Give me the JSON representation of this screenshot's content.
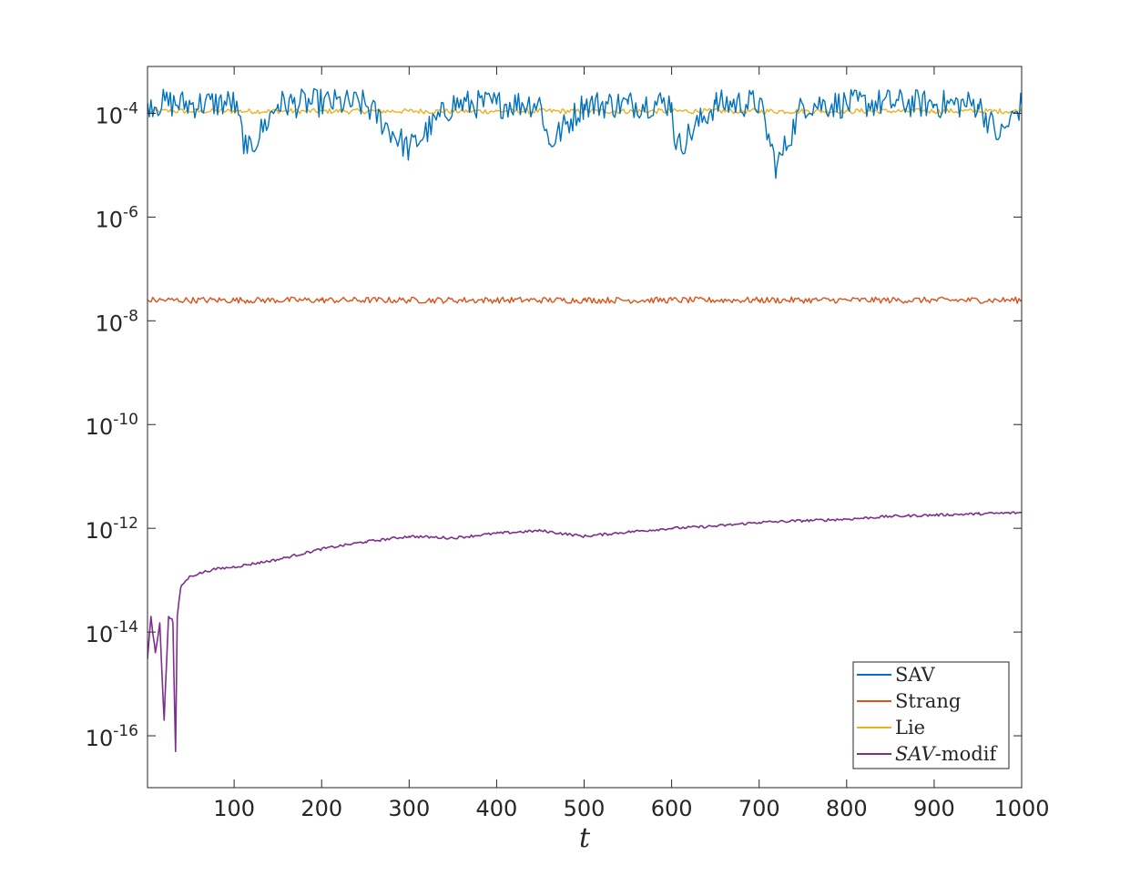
{
  "chart_data": {
    "type": "line",
    "xlabel": "t",
    "ylabel": "",
    "title": "",
    "xlim": [
      1,
      1000
    ],
    "ylim": [
      1e-17,
      0.0008
    ],
    "yscale": "log",
    "grid": false,
    "legend_position": "bottom-right",
    "x_ticks": [
      100,
      200,
      300,
      400,
      500,
      600,
      700,
      800,
      900,
      1000
    ],
    "x_tick_labels": [
      "100",
      "200",
      "300",
      "400",
      "500",
      "600",
      "700",
      "800",
      "900",
      "1000"
    ],
    "y_ticks": [
      1e-16,
      1e-14,
      1e-12,
      1e-10,
      1e-08,
      1e-06,
      0.0001
    ],
    "y_tick_labels": [
      {
        "base": "10",
        "exp": "-16"
      },
      {
        "base": "10",
        "exp": "-14"
      },
      {
        "base": "10",
        "exp": "-12"
      },
      {
        "base": "10",
        "exp": "-10"
      },
      {
        "base": "10",
        "exp": "-8"
      },
      {
        "base": "10",
        "exp": "-6"
      },
      {
        "base": "10",
        "exp": "-4"
      }
    ],
    "series": [
      {
        "name": "SAV",
        "name_style": "roman",
        "color": "#0072BD",
        "description": "oscillates around 1.5e-4 with downward spikes",
        "x": [
          1,
          50,
          100,
          115,
          150,
          200,
          250,
          300,
          350,
          400,
          450,
          460,
          500,
          550,
          600,
          605,
          650,
          700,
          720,
          750,
          800,
          850,
          900,
          950,
          975,
          1000
        ],
        "values": [
          0.00016,
          0.00015,
          0.00016,
          1.7e-05,
          0.00015,
          0.00016,
          0.00015,
          2e-05,
          0.00015,
          0.00015,
          0.00016,
          2.5e-05,
          0.00015,
          0.00015,
          0.00016,
          2e-05,
          0.00015,
          0.00016,
          9e-06,
          0.00015,
          0.00015,
          0.00016,
          0.00015,
          0.00015,
          3.5e-05,
          0.00015
        ]
      },
      {
        "name": "Strang",
        "name_style": "roman",
        "color": "#D95319",
        "description": "flat near 2.5e-8",
        "x": [
          1,
          100,
          200,
          300,
          400,
          500,
          600,
          700,
          800,
          900,
          1000
        ],
        "values": [
          2.5e-08,
          2.5e-08,
          2.5e-08,
          2.5e-08,
          2.5e-08,
          2.5e-08,
          2.5e-08,
          2.5e-08,
          2.5e-08,
          2.5e-08,
          2.5e-08
        ]
      },
      {
        "name": "Lie",
        "name_style": "roman",
        "color": "#EDB120",
        "description": "flat near 1.1e-4",
        "x": [
          1,
          100,
          200,
          300,
          400,
          500,
          600,
          700,
          800,
          900,
          1000
        ],
        "values": [
          0.00011,
          0.00011,
          0.00011,
          0.00011,
          0.00011,
          0.00011,
          0.00011,
          0.00011,
          0.00011,
          0.00011,
          0.00011
        ]
      },
      {
        "name_parts": [
          {
            "text": "SAV",
            "style": "italic"
          },
          {
            "text": "-modif",
            "style": "roman"
          }
        ],
        "color": "#7E2F8E",
        "description": "noisy ~1e-14 at start, jumps up near t=35 then grows slowly to ~2e-12",
        "x": [
          1,
          5,
          10,
          15,
          20,
          25,
          30,
          33,
          35,
          37,
          40,
          50,
          75,
          100,
          150,
          200,
          250,
          300,
          350,
          400,
          450,
          500,
          550,
          600,
          650,
          700,
          750,
          800,
          850,
          900,
          950,
          1000
        ],
        "values": [
          3e-15,
          2e-14,
          4e-15,
          1.5e-14,
          2e-16,
          2e-14,
          1.5e-14,
          5e-17,
          2e-14,
          4e-14,
          8e-14,
          1.2e-13,
          1.6e-13,
          1.8e-13,
          2.5e-13,
          4e-13,
          5.5e-13,
          7e-13,
          6.5e-13,
          8e-13,
          9e-13,
          7e-13,
          8.5e-13,
          1e-12,
          1.1e-12,
          1.3e-12,
          1.4e-12,
          1.5e-12,
          1.7e-12,
          1.8e-12,
          1.9e-12,
          2e-12
        ]
      }
    ]
  }
}
